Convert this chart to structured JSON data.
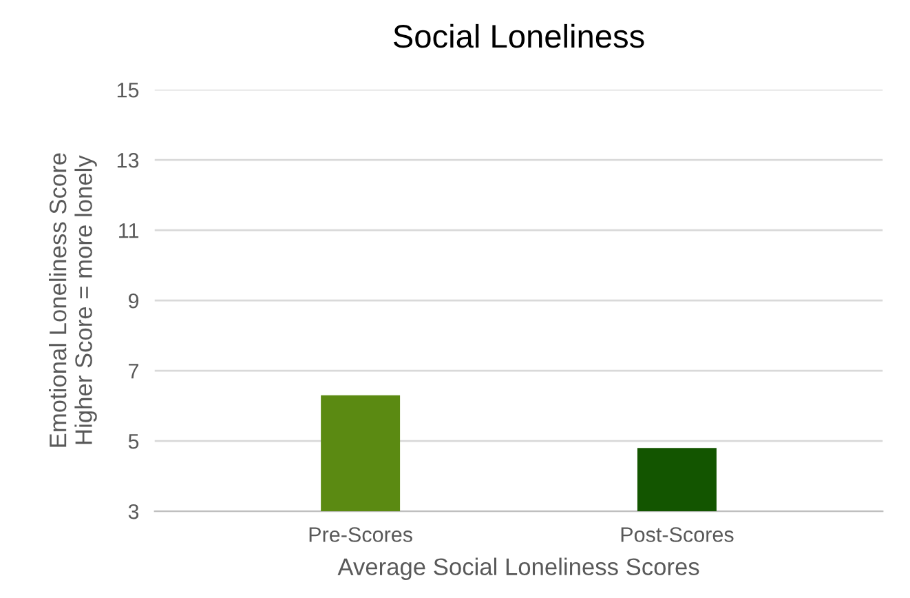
{
  "chart_data": {
    "type": "bar",
    "title": "Social Loneliness",
    "xlabel": "Average Social Loneliness Scores",
    "ylabel": "Emotional Loneliness Score\nHigher Score = more lonely",
    "categories": [
      "Pre-Scores",
      "Post-Scores"
    ],
    "values": [
      6.3,
      4.8
    ],
    "colors": [
      "#5b8a12",
      "#135500"
    ],
    "ylim": [
      3,
      15
    ],
    "yticks": [
      3,
      5,
      7,
      9,
      11,
      13,
      15
    ],
    "grid": "y",
    "legend": false
  }
}
